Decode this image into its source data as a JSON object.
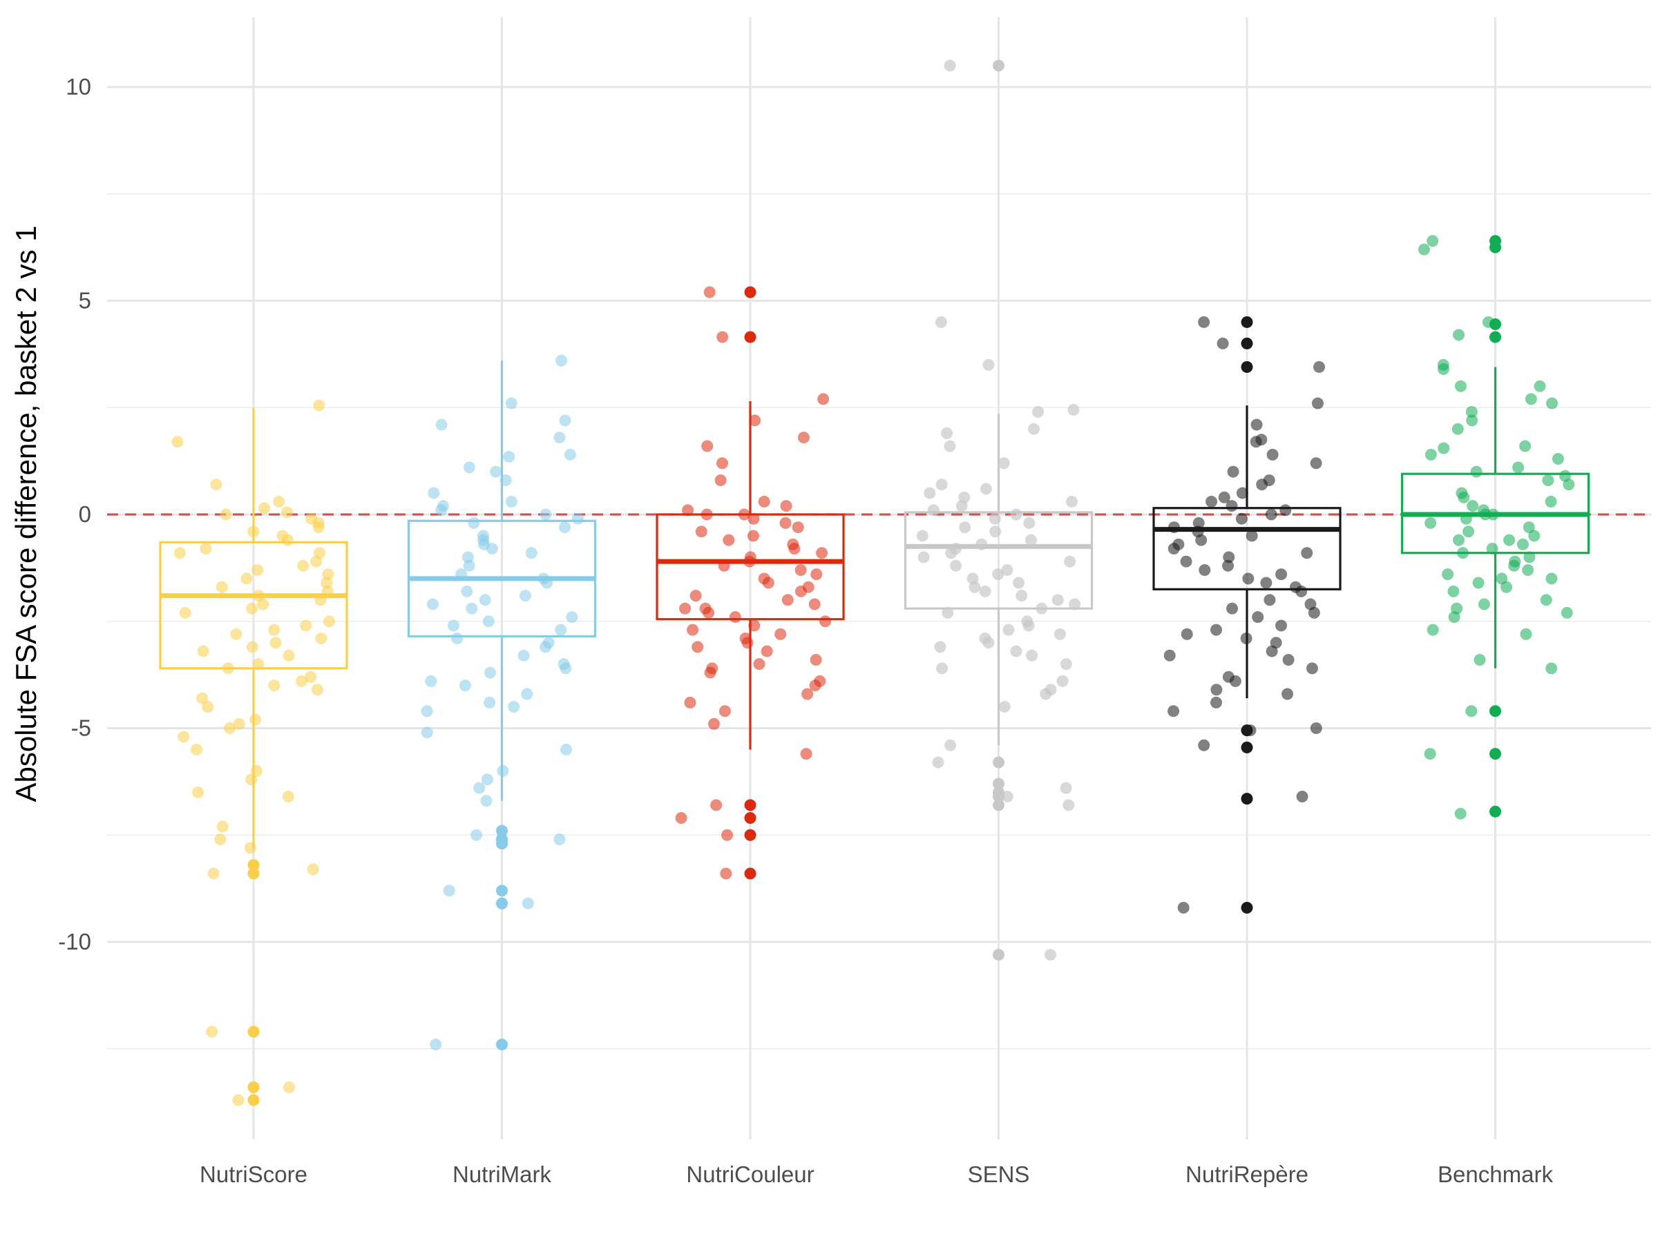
{
  "chart_data": {
    "type": "box",
    "title": "",
    "xlabel": "",
    "ylabel": "Absolute FSA score difference, basket 2 vs 1",
    "ylim": [
      -14.8,
      11.4
    ],
    "yticks": [
      10,
      5,
      0,
      -5,
      -10
    ],
    "ytick_labels": [
      "10",
      "5",
      "0",
      "-5",
      "-10"
    ],
    "y_minor_ticks": [
      7.5,
      2.5,
      -2.5,
      -7.5,
      -12.5
    ],
    "grid": true,
    "legend": "none",
    "reference_line": {
      "y": 0,
      "style": "dashed",
      "color": "#cd5555"
    },
    "categories": [
      "NutriScore",
      "NutriMark",
      "NutriCouleur",
      "SENS",
      "NutriRepère",
      "Benchmark"
    ],
    "colors": [
      "#f9cf47",
      "#86cbe7",
      "#dc2a0e",
      "#c8c8c8",
      "#1a1a1a",
      "#11ad53"
    ],
    "boxes": [
      {
        "q1": -3.6,
        "median": -1.9,
        "q3": -0.65,
        "whisker_low": -7.8,
        "whisker_high": 2.5
      },
      {
        "q1": -2.85,
        "median": -1.5,
        "q3": -0.15,
        "whisker_low": -6.7,
        "whisker_high": 3.6
      },
      {
        "q1": -2.45,
        "median": -1.1,
        "q3": 0.0,
        "whisker_low": -5.5,
        "whisker_high": 2.65
      },
      {
        "q1": -2.2,
        "median": -0.75,
        "q3": 0.05,
        "whisker_low": -5.4,
        "whisker_high": 2.35
      },
      {
        "q1": -1.75,
        "median": -0.35,
        "q3": 0.15,
        "whisker_low": -4.3,
        "whisker_high": 2.55
      },
      {
        "q1": -0.9,
        "median": 0.0,
        "q3": 0.95,
        "whisker_low": -3.6,
        "whisker_high": 3.45
      }
    ],
    "outliers": [
      [
        -8.2,
        -8.4,
        -12.1,
        -13.4,
        -13.7
      ],
      [
        -7.4,
        -7.6,
        -7.7,
        -8.8,
        -9.1,
        -12.4
      ],
      [
        5.2,
        4.15,
        -6.8,
        -7.1,
        -7.5,
        -8.4
      ],
      [
        10.5,
        -5.8,
        -6.3,
        -6.5,
        -6.6,
        -6.8,
        -10.3
      ],
      [
        4.5,
        4.0,
        3.45,
        -5.05,
        -5.45,
        -6.65,
        -9.2
      ],
      [
        6.4,
        6.25,
        4.45,
        4.15,
        -4.6,
        -5.6,
        -6.95
      ]
    ],
    "jitter_points": [
      [
        2.55,
        0.7,
        -0.3,
        0.15,
        -0.8,
        -0.9,
        -1.2,
        -1.4,
        -1.6,
        -1.9,
        -2.0,
        -2.2,
        -2.5,
        -2.7,
        -3.0,
        -3.2,
        -3.5,
        -3.6,
        -4.1,
        -4.3,
        -4.8,
        -5.0,
        -5.5,
        -6.0,
        -6.5,
        -7.3,
        -7.8,
        -8.3,
        -0.1,
        -0.4,
        0.05,
        -0.6,
        1.7,
        -1.1,
        -1.5,
        -2.3,
        -2.9,
        -3.3,
        -0.2,
        -1.8,
        -2.6,
        -3.9,
        -4.5,
        -5.2,
        -6.2,
        -7.6,
        -8.4,
        0.3,
        -0.5,
        -1.3,
        -2.8,
        -3.1,
        -4.0,
        0.0,
        -0.9,
        -1.7,
        -2.1,
        -3.8,
        -4.9,
        -6.6,
        -13.4,
        -12.1,
        -13.7
      ],
      [
        1.4,
        1.0,
        2.6,
        2.2,
        2.1,
        1.8,
        0.8,
        0.5,
        0.2,
        -0.1,
        -0.3,
        -0.6,
        -0.9,
        -1.2,
        -1.5,
        -1.8,
        -2.1,
        -2.4,
        -2.7,
        -3.0,
        -3.3,
        -3.6,
        -3.9,
        -4.2,
        -4.5,
        -5.1,
        -5.5,
        -6.0,
        -6.4,
        -6.7,
        -7.5,
        -8.8,
        -9.1,
        3.6,
        1.35,
        0.3,
        -0.5,
        -1.0,
        -1.6,
        -2.0,
        -2.6,
        -3.1,
        -3.7,
        -4.4,
        -4.6,
        -6.2,
        -7.6,
        -12.4,
        0.0,
        -0.2,
        -0.8,
        -1.4,
        -2.2,
        -2.9,
        -3.5,
        -4.0,
        1.1,
        0.1,
        -0.7,
        -1.9,
        -2.5
      ],
      [
        1.8,
        1.6,
        1.2,
        0.8,
        0.3,
        0.0,
        -0.2,
        -0.5,
        -0.8,
        -1.0,
        -1.3,
        -1.6,
        -1.9,
        -2.2,
        -2.5,
        -2.8,
        -3.1,
        -3.4,
        -3.7,
        -4.0,
        -4.4,
        -4.9,
        -5.6,
        -7.1,
        -7.5,
        -6.8,
        2.7,
        2.2,
        4.15,
        5.2,
        0.2,
        -0.1,
        -0.6,
        -1.1,
        -1.4,
        -1.8,
        -2.0,
        -2.3,
        -2.6,
        -2.9,
        -3.2,
        -3.6,
        -4.2,
        -4.6,
        0.0,
        -0.3,
        -0.7,
        -1.2,
        -1.5,
        -2.1,
        -2.4,
        -2.7,
        -3.0,
        -3.5,
        -3.9,
        0.1,
        -0.4,
        -0.9,
        -1.7,
        -2.2,
        -8.4
      ],
      [
        10.5,
        2.4,
        2.0,
        1.6,
        1.2,
        0.7,
        0.4,
        0.1,
        -0.2,
        -0.5,
        -0.8,
        -1.1,
        -1.4,
        -1.7,
        -2.0,
        -2.3,
        -2.6,
        -2.9,
        -3.2,
        -3.5,
        -4.1,
        -4.5,
        -5.4,
        -5.8,
        -6.4,
        -6.8,
        -10.3,
        4.5,
        3.5,
        2.45,
        1.9,
        0.6,
        0.3,
        0.0,
        -0.3,
        -0.6,
        -1.0,
        -1.3,
        -1.6,
        -1.9,
        -2.2,
        -2.5,
        -2.8,
        -3.1,
        -3.3,
        -3.9,
        -4.2,
        -6.6,
        0.5,
        -0.1,
        -0.4,
        -0.9,
        -1.5,
        -2.1,
        -2.7,
        -3.0,
        -3.6,
        0.2,
        -0.7,
        -1.2,
        -1.8
      ],
      [
        2.6,
        2.1,
        1.7,
        1.4,
        1.0,
        0.7,
        0.4,
        0.2,
        0.0,
        -0.2,
        -0.4,
        -0.6,
        -0.8,
        -1.0,
        -1.3,
        -1.5,
        -1.8,
        -2.1,
        -2.4,
        -2.7,
        -3.0,
        -3.3,
        -3.6,
        -3.9,
        -4.2,
        -4.4,
        -4.6,
        -5.0,
        -5.4,
        -6.6,
        -9.2,
        4.5,
        4.0,
        3.45,
        1.75,
        1.2,
        0.8,
        0.5,
        0.1,
        -0.1,
        -0.3,
        -0.7,
        -0.9,
        -1.2,
        -1.4,
        -1.7,
        -2.0,
        -2.3,
        -2.6,
        -2.9,
        -3.4,
        -3.8,
        -4.1,
        -5.05,
        0.3,
        -0.5,
        -1.1,
        -1.6,
        -2.2,
        -2.8,
        -3.2
      ],
      [
        6.4,
        6.2,
        4.5,
        4.2,
        3.5,
        3.0,
        2.6,
        2.2,
        2.0,
        1.6,
        1.3,
        1.0,
        0.7,
        0.4,
        0.2,
        0.0,
        -0.2,
        -0.4,
        -0.6,
        -0.8,
        -1.0,
        -1.2,
        -1.4,
        -1.6,
        -1.8,
        -2.0,
        -2.2,
        -2.4,
        -2.7,
        -3.4,
        -3.6,
        -4.6,
        -5.6,
        -7.0,
        3.4,
        2.7,
        2.4,
        1.55,
        1.1,
        0.9,
        0.5,
        0.3,
        0.1,
        -0.1,
        -0.3,
        -0.5,
        -0.7,
        -0.9,
        -1.1,
        -1.3,
        -1.5,
        -1.7,
        -2.1,
        -2.3,
        -2.8,
        3.0,
        1.4,
        0.8,
        0.0,
        -0.6,
        -1.5
      ]
    ]
  }
}
